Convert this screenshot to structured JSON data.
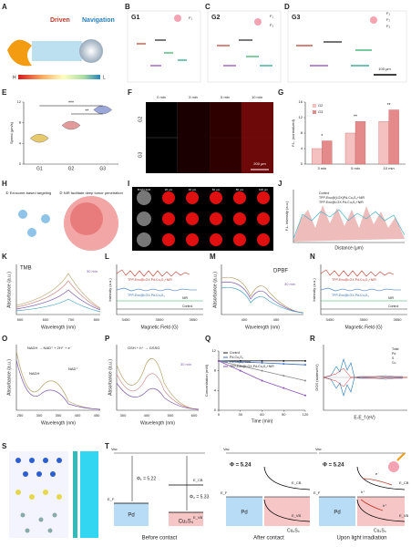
{
  "panels": [
    "A",
    "B",
    "C",
    "D",
    "E",
    "F",
    "G",
    "H",
    "I",
    "J",
    "K",
    "L",
    "M",
    "N",
    "O",
    "P",
    "Q",
    "R",
    "S",
    "T"
  ],
  "a": {
    "driven": "Driven",
    "navigation": "Navigation",
    "high": "H",
    "low": "L"
  },
  "b": {
    "group": "G1",
    "forces": [
      "F₁"
    ]
  },
  "c": {
    "group": "G2",
    "forces": [
      "F₁",
      "F₂"
    ]
  },
  "d": {
    "group": "G3",
    "forces": [
      "F₁",
      "F₂",
      "F₃"
    ],
    "scale": "100 μm"
  },
  "f": {
    "times": [
      "0 min",
      "3 min",
      "5 min",
      "10 min"
    ],
    "rows": [
      "G2",
      "G3"
    ],
    "scale": "200 μm"
  },
  "h": {
    "step1": "① Exosome-based targeting",
    "step2": "② NIR facilitate deep tumor penetration"
  },
  "i": {
    "columns": [
      "Bright field",
      "20 μm",
      "40 μm",
      "60 μm",
      "80 μm",
      "100 μm"
    ]
  },
  "j": {
    "legend": [
      "Control",
      "TPP-Exo@(LOX)Pd-Cu₂S₄+NIR",
      "TPP-Exo@LOX-Pd-Cu₂S₄+NIR"
    ],
    "xlabel": "Distance (μm)",
    "ylabel": "F.L. intensity (a.u.)"
  },
  "k": {
    "title": "TMB",
    "note": "30 min",
    "xlabel": "Wavelength (nm)",
    "ylabel": "Absorbance (a.u.)",
    "xticks": [
      "500",
      "600",
      "700",
      "800"
    ]
  },
  "l": {
    "legend": [
      "TPP-Exo@LOX-Pd-Cu₂S₄+NIR",
      "TPP-Exo@LOX-Pd-Cu₂S₄",
      "NIR",
      "Control"
    ],
    "xlabel": "Magnetic Field (G)",
    "ylabel": "Intensity (a.u.)",
    "xticks": [
      "3450",
      "3500",
      "3550"
    ]
  },
  "m": {
    "title": "DPBF",
    "note": "30 min",
    "xlabel": "Wavelength (nm)",
    "ylabel": "Absorbance (a.u.)",
    "xticks": [
      "400",
      "450"
    ]
  },
  "n": {
    "legend": [
      "TPP-Exo@LOX-Pd-Cu₂S₄+NIR",
      "TPP-Exo@LOX-Pd-Cu₂S₄",
      "NIR",
      "Control"
    ],
    "xlabel": "Magnetic Field (G)",
    "ylabel": "Intensity (a.u.)",
    "xticks": [
      "3450",
      "3500",
      "3550"
    ]
  },
  "o": {
    "title": "NADH → NAD⁺ + 2H⁺ + e⁻",
    "left": "NADH",
    "right": "NAD⁺",
    "xlabel": "Wavelength (nm)",
    "ylabel": "Absorbance (a.u.)",
    "xticks": [
      "250",
      "300",
      "350",
      "400",
      "450"
    ]
  },
  "p": {
    "title": "GSH + h⁺ → GSSG",
    "note": "30 min",
    "xlabel": "Wavelength (nm)",
    "ylabel": "Absorbance (a.u.)",
    "xticks": [
      "300",
      "400",
      "500",
      "600"
    ]
  },
  "r": {
    "legend": [
      "Total",
      "Pd",
      "S",
      "Cu"
    ],
    "xlabel": "E-E_f (eV)",
    "ylabel": "DOS (states/eV)"
  },
  "t": {
    "vac": "Vac",
    "phi1": "Φ₁ = 5.22",
    "phi2": "Φ₂ = 5.33",
    "phi": "Φ = 5.24",
    "ecb": "E_CB",
    "evb": "E_VB",
    "ef": "E_F",
    "pd": "Pd",
    "cus": "Cu₂S₄",
    "before": "Before contact",
    "after": "After contact",
    "light": "Upon light irradiation",
    "electron": "e⁻",
    "hole": "h⁺"
  },
  "chart_data": [
    {
      "type": "box",
      "ylabel": "Speed (μm/s)",
      "categories": [
        "G1",
        "G2",
        "G3"
      ],
      "values": [
        5,
        7.5,
        10.5
      ],
      "colors": [
        "#e6c96a",
        "#e29a9a",
        "#9aa7d8"
      ],
      "ylim": [
        0,
        12
      ],
      "yticks": [
        0,
        4,
        8,
        12
      ],
      "annotations": [
        "***",
        "**"
      ]
    },
    {
      "type": "bar",
      "ylabel": "F.L. (normalized)",
      "categories": [
        "3 min",
        "5 min",
        "10 min"
      ],
      "series": [
        {
          "name": "G2",
          "color": "#f4c0c0",
          "values": [
            4,
            8,
            11
          ]
        },
        {
          "name": "G3",
          "color": "#e58a8a",
          "values": [
            6,
            11,
            14
          ]
        }
      ],
      "ylim": [
        0,
        16
      ],
      "yticks": [
        0,
        4,
        8,
        12,
        16
      ],
      "annotations": [
        "*",
        "**",
        "**"
      ]
    },
    {
      "type": "line",
      "xlabel": "Time (min)",
      "ylabel": "Concentration (mM)",
      "x": [
        0,
        30,
        60,
        90,
        120
      ],
      "series": [
        {
          "name": "Control",
          "color": "#222222",
          "values": [
            10,
            10,
            10,
            10,
            10
          ]
        },
        {
          "name": "Pd-Cu₂S₄",
          "color": "#3b6fc4",
          "values": [
            10,
            9.8,
            9.6,
            9.4,
            9.2
          ]
        },
        {
          "name": "Pd-Cu₂S₄+NIR",
          "color": "#888888",
          "values": [
            10,
            9,
            8,
            7,
            6
          ]
        },
        {
          "name": "TPP-Exo@LOX-Pd-Cu₂S₄+NIR",
          "color": "#8a4fb3",
          "values": [
            10,
            8,
            6,
            4.5,
            3
          ]
        }
      ],
      "xlim": [
        0,
        120
      ],
      "xticks": [
        0,
        30,
        60,
        90,
        120
      ],
      "ylim": [
        0,
        12
      ],
      "yticks": [
        0,
        4,
        8,
        12
      ]
    }
  ]
}
